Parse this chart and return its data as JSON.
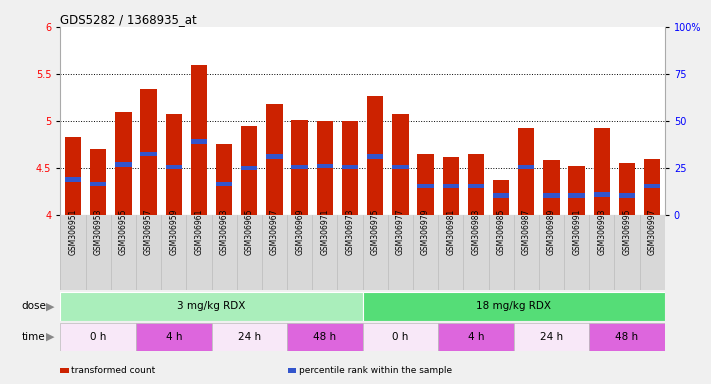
{
  "title": "GDS5282 / 1368935_at",
  "samples": [
    "GSM306951",
    "GSM306953",
    "GSM306955",
    "GSM306957",
    "GSM306959",
    "GSM306961",
    "GSM306963",
    "GSM306965",
    "GSM306967",
    "GSM306969",
    "GSM306971",
    "GSM306973",
    "GSM306975",
    "GSM306977",
    "GSM306979",
    "GSM306981",
    "GSM306983",
    "GSM306985",
    "GSM306987",
    "GSM306989",
    "GSM306991",
    "GSM306993",
    "GSM306995",
    "GSM306997"
  ],
  "bar_values": [
    4.83,
    4.7,
    5.1,
    5.34,
    5.07,
    5.6,
    4.75,
    4.95,
    5.18,
    5.01,
    5.0,
    5.0,
    5.27,
    5.07,
    4.65,
    4.62,
    4.65,
    4.37,
    4.93,
    4.58,
    4.52,
    4.93,
    4.55,
    4.6
  ],
  "blue_values": [
    4.38,
    4.33,
    4.54,
    4.65,
    4.51,
    4.78,
    4.33,
    4.5,
    4.62,
    4.51,
    4.52,
    4.51,
    4.62,
    4.51,
    4.31,
    4.31,
    4.31,
    4.21,
    4.51,
    4.21,
    4.21,
    4.22,
    4.21,
    4.31
  ],
  "ymin": 4.0,
  "ymax": 6.0,
  "yticks": [
    4.0,
    4.5,
    5.0,
    5.5,
    6.0
  ],
  "right_yticks": [
    0,
    25,
    50,
    75,
    100
  ],
  "right_yticklabels": [
    "0",
    "25",
    "50",
    "75",
    "100%"
  ],
  "hlines": [
    4.5,
    5.0,
    5.5
  ],
  "bar_color": "#cc2200",
  "blue_color": "#3355cc",
  "fig_bg": "#f0f0f0",
  "plot_bg": "#ffffff",
  "xtick_bg": "#d8d8d8",
  "dose_groups": [
    {
      "label": "3 mg/kg RDX",
      "start": 0,
      "end": 12,
      "color": "#aaeebb"
    },
    {
      "label": "18 mg/kg RDX",
      "start": 12,
      "end": 24,
      "color": "#55dd77"
    }
  ],
  "time_groups": [
    {
      "label": "0 h",
      "start": 0,
      "end": 3,
      "color": "#f8e8f8"
    },
    {
      "label": "4 h",
      "start": 3,
      "end": 6,
      "color": "#dd66dd"
    },
    {
      "label": "24 h",
      "start": 6,
      "end": 9,
      "color": "#f8e8f8"
    },
    {
      "label": "48 h",
      "start": 9,
      "end": 12,
      "color": "#dd66dd"
    },
    {
      "label": "0 h",
      "start": 12,
      "end": 15,
      "color": "#f8e8f8"
    },
    {
      "label": "4 h",
      "start": 15,
      "end": 18,
      "color": "#dd66dd"
    },
    {
      "label": "24 h",
      "start": 18,
      "end": 21,
      "color": "#f8e8f8"
    },
    {
      "label": "48 h",
      "start": 21,
      "end": 24,
      "color": "#dd66dd"
    }
  ],
  "legend_items": [
    {
      "label": "transformed count",
      "color": "#cc2200"
    },
    {
      "label": "percentile rank within the sample",
      "color": "#3355cc"
    }
  ]
}
